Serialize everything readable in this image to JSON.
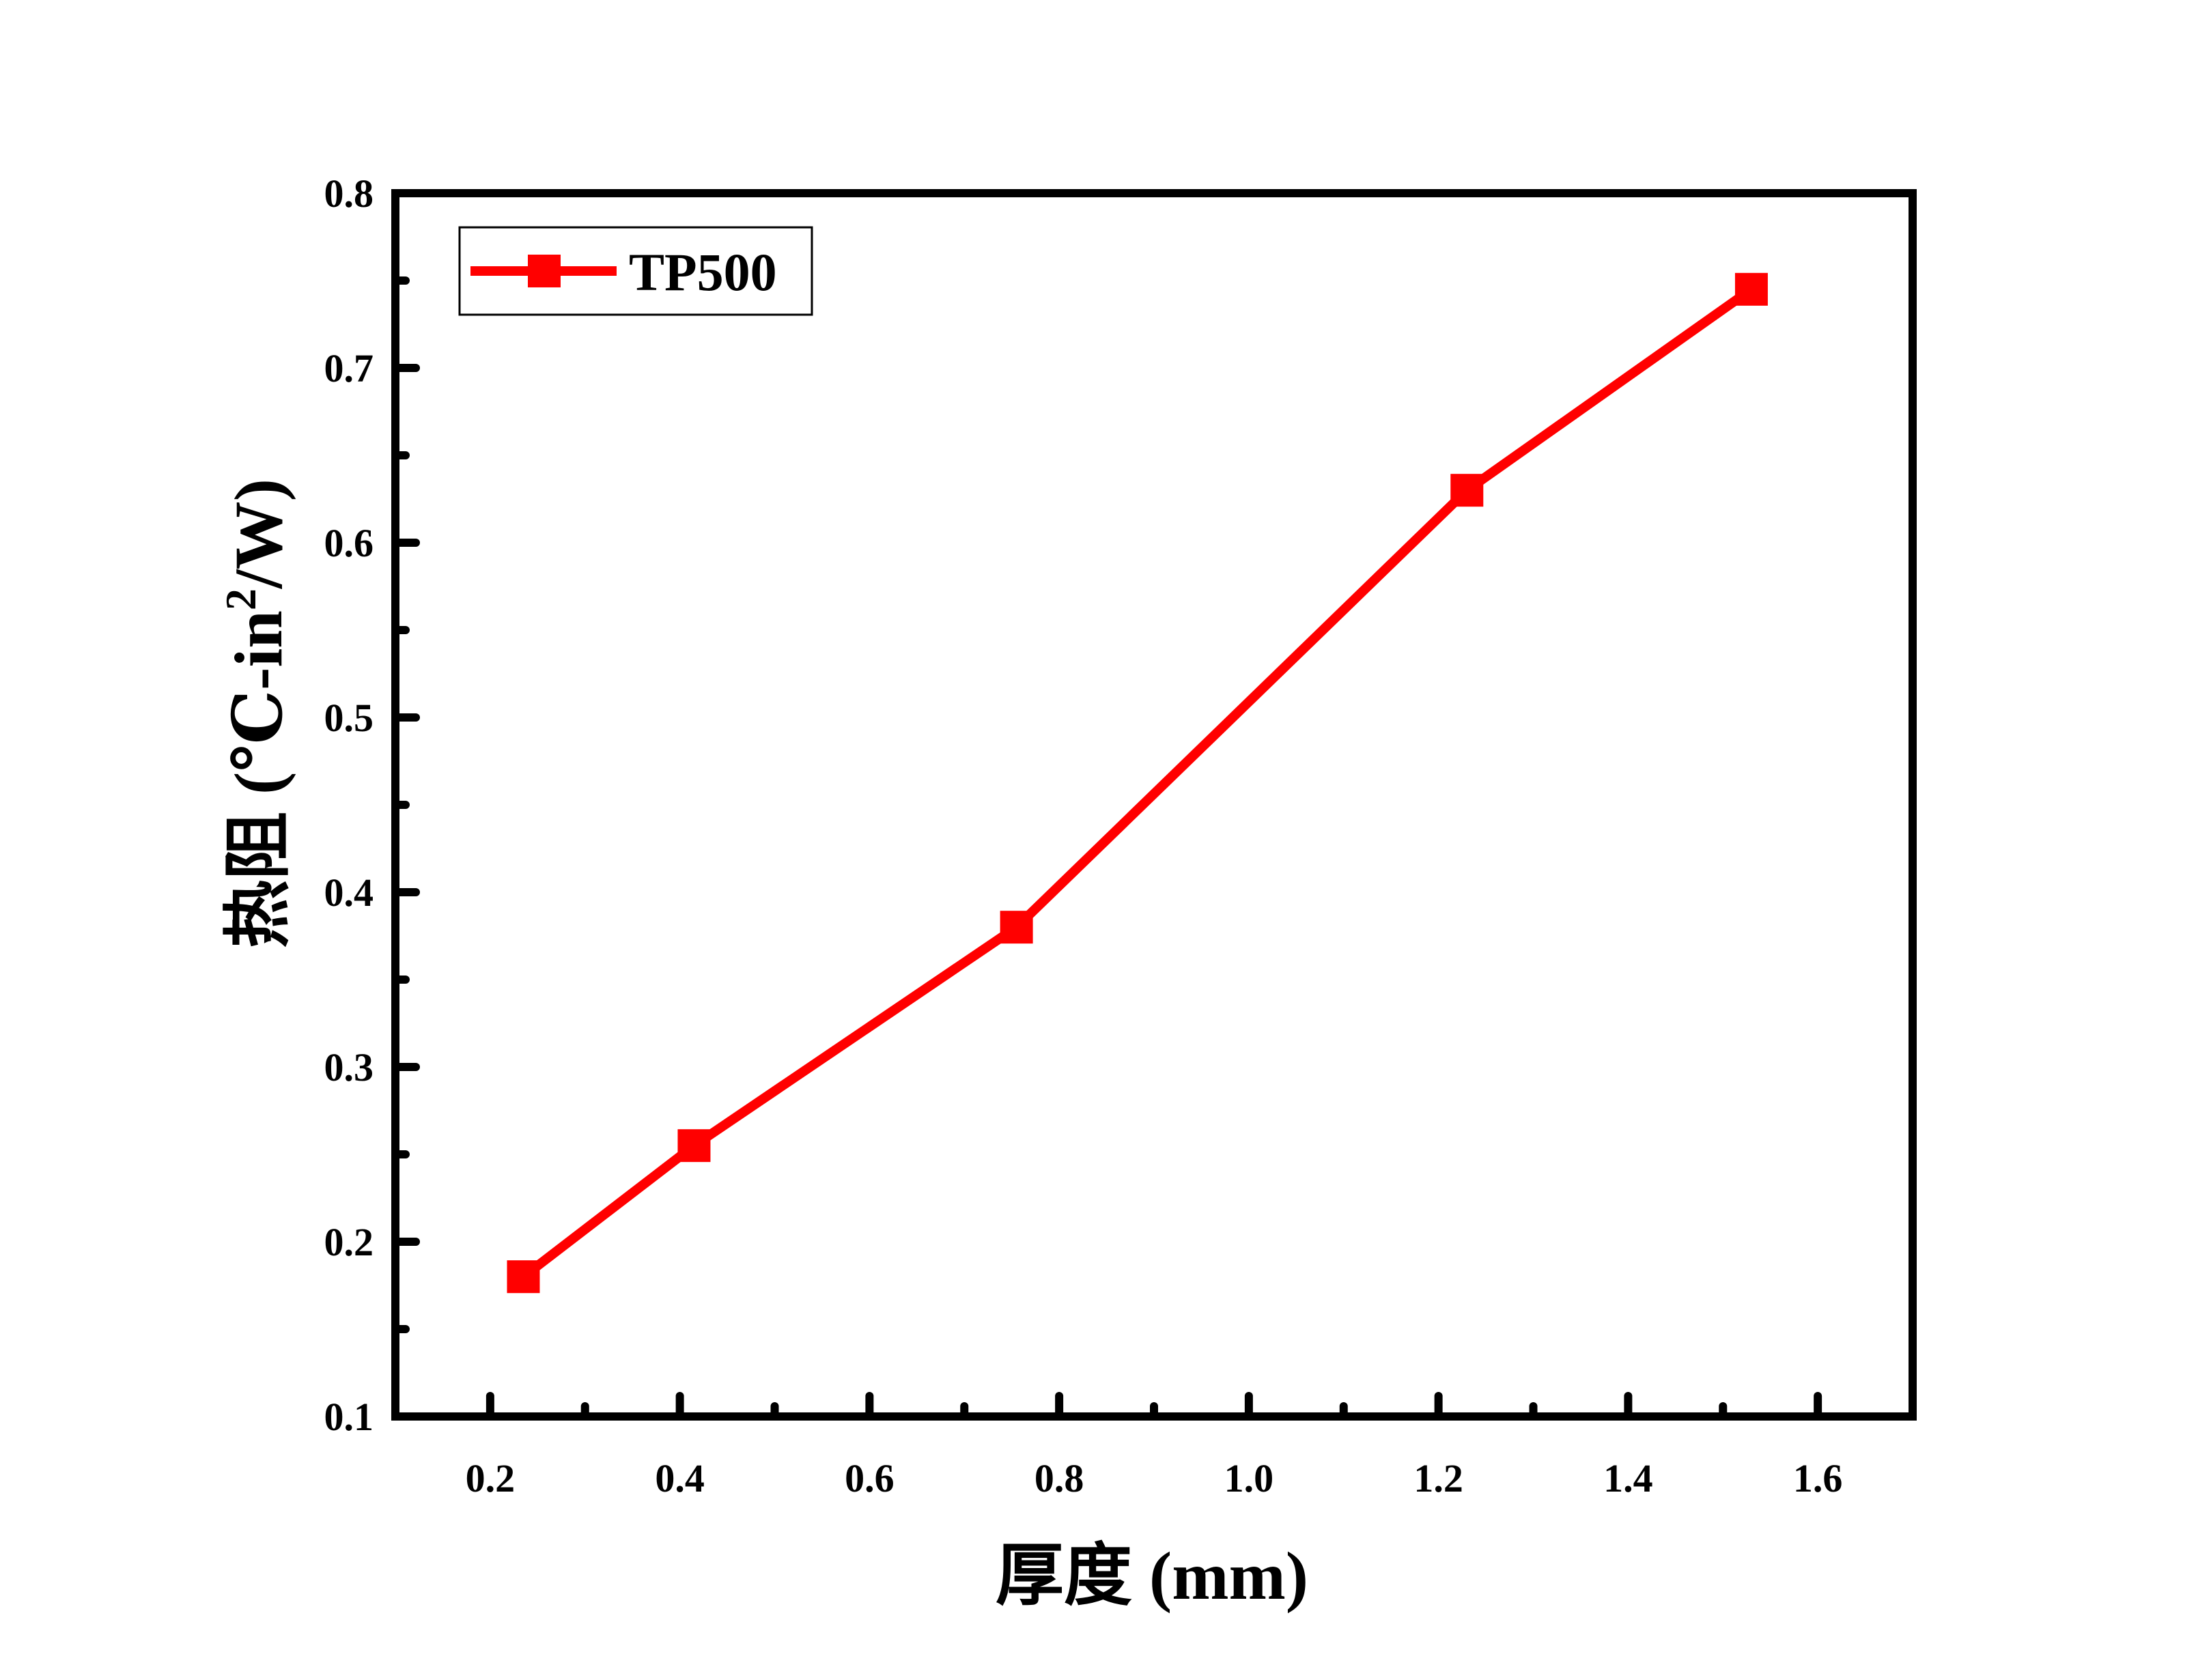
{
  "chart_data": {
    "type": "line",
    "x": [
      0.235,
      0.415,
      0.755,
      1.23,
      1.53
    ],
    "series": [
      {
        "name": "TP500",
        "values": [
          0.18,
          0.255,
          0.38,
          0.63,
          0.745
        ],
        "color": "#ff0000",
        "marker": "square"
      }
    ],
    "xlabel": "厚度 (mm)",
    "ylabel_main": "热阻 (℃-in",
    "ylabel_sup": "2",
    "ylabel_tail": "/W)",
    "xlim": [
      0.1,
      1.7
    ],
    "ylim": [
      0.1,
      0.8
    ],
    "xticks": [
      "0.2",
      "0.4",
      "0.6",
      "0.8",
      "1.0",
      "1.2",
      "1.4",
      "1.6"
    ],
    "yticks": [
      "0.1",
      "0.2",
      "0.3",
      "0.4",
      "0.5",
      "0.6",
      "0.7",
      "0.8"
    ],
    "legend_position": "top-left",
    "grid": false
  }
}
